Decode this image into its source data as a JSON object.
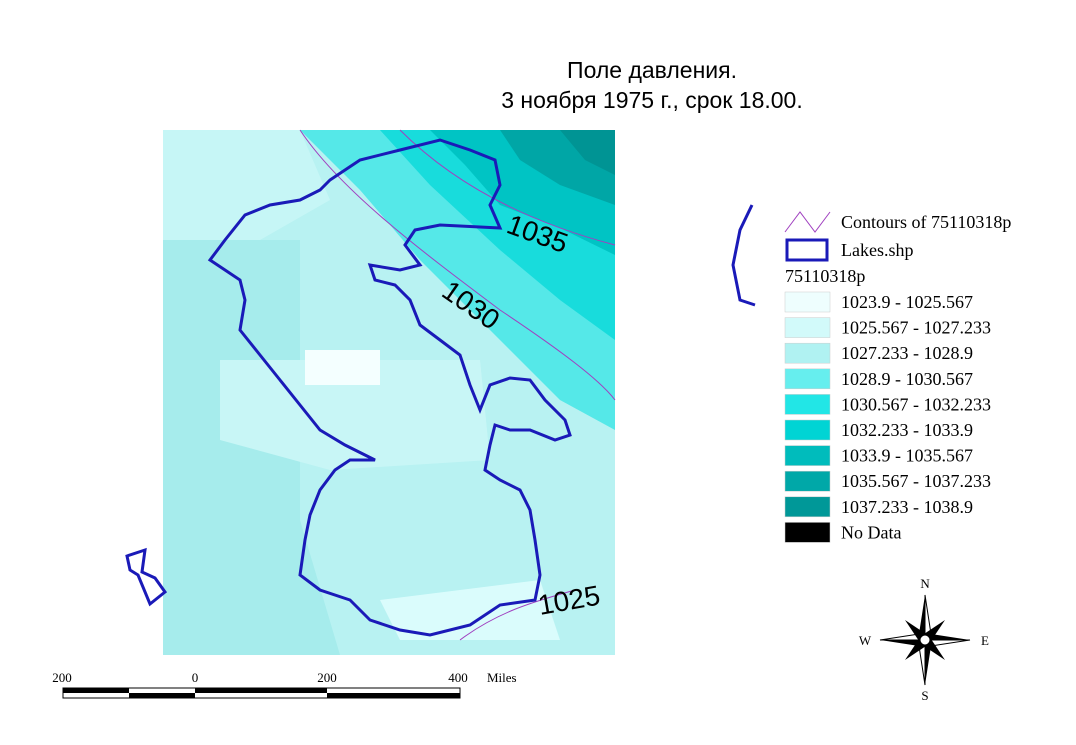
{
  "title": [
    "Поле давления.",
    "3 ноября 1975 г., срок 18.00."
  ],
  "contour_labels": [
    "1035",
    "1030",
    "1025"
  ],
  "legend": {
    "contours": "Contours of 75110318p",
    "lakes": "Lakes.shp",
    "layer": "75110318p",
    "classes": [
      {
        "label": "1023.9 - 1025.567",
        "color": "#eefefe"
      },
      {
        "label": "1025.567 - 1027.233",
        "color": "#d2fafa"
      },
      {
        "label": "1027.233 - 1028.9",
        "color": "#b0f2f2"
      },
      {
        "label": "1028.9 - 1030.567",
        "color": "#66eeee"
      },
      {
        "label": "1030.567 - 1032.233",
        "color": "#22e6e6"
      },
      {
        "label": "1032.233 - 1033.9",
        "color": "#00d4d4"
      },
      {
        "label": "1033.9 - 1035.567",
        "color": "#00bcbc"
      },
      {
        "label": "1035.567 - 1037.233",
        "color": "#00a8a8"
      },
      {
        "label": "1037.233 - 1038.9",
        "color": "#009898"
      },
      {
        "label": "No Data",
        "color": "#000000"
      }
    ]
  },
  "scale": {
    "labels": [
      "200",
      "0",
      "200",
      "400"
    ],
    "unit": "Miles"
  },
  "compass": {
    "n": "N",
    "w": "W",
    "e": "E",
    "s": "S"
  }
}
